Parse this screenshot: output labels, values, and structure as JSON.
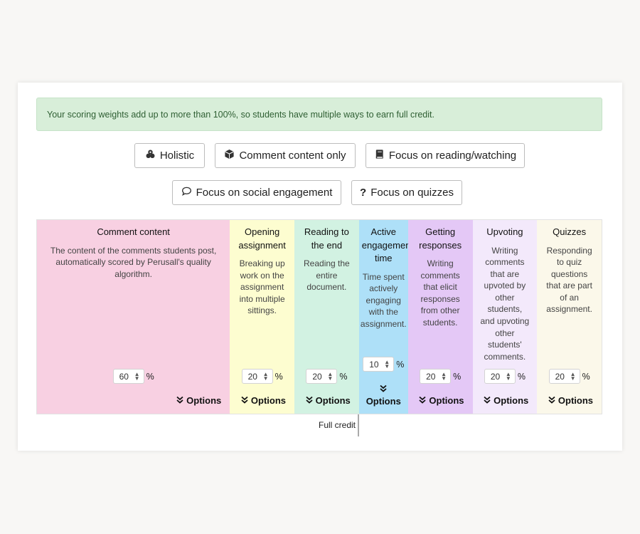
{
  "alert": {
    "text": "Your scoring weights add up to more than 100%, so students have multiple ways to earn full credit."
  },
  "presets": [
    {
      "label": "Holistic",
      "icon": "cubes-icon"
    },
    {
      "label": "Comment content only",
      "icon": "cube-icon"
    },
    {
      "label": "Focus on reading/watching",
      "icon": "book-icon"
    },
    {
      "label": "Focus on social engagement",
      "icon": "speech-bubble-icon"
    },
    {
      "label": "Focus on quizzes",
      "icon": "question-icon"
    }
  ],
  "components": [
    {
      "title": "Comment content",
      "description": "The content of the comments students post, automatically scored by Perusall's quality algorithm.",
      "weight": "60",
      "unit": "%",
      "options": "Options",
      "color": "#f8d0e2"
    },
    {
      "title": "Opening assignment",
      "description": "Breaking up work on the assignment into multiple sittings.",
      "weight": "20",
      "unit": "%",
      "options": "Options",
      "color": "#fdfdd0"
    },
    {
      "title": "Reading to the end",
      "description": "Reading the entire document.",
      "weight": "20",
      "unit": "%",
      "options": "Options",
      "color": "#d2f2e2"
    },
    {
      "title": "Active engagement time",
      "description": "Time spent actively engaging with the assignment.",
      "weight": "10",
      "unit": "%",
      "options": "Options",
      "color": "#aee0f8"
    },
    {
      "title": "Getting responses",
      "description": "Writing comments that elicit responses from other students.",
      "weight": "20",
      "unit": "%",
      "options": "Options",
      "color": "#e4c8f6"
    },
    {
      "title": "Upvoting",
      "description": "Writing comments that are upvoted by other students, and upvoting other students' comments.",
      "weight": "20",
      "unit": "%",
      "options": "Options",
      "color": "#f3e9fb"
    },
    {
      "title": "Quizzes",
      "description": "Responding to quiz questions that are part of an assignment.",
      "weight": "20",
      "unit": "%",
      "options": "Options",
      "color": "#fbf8ea"
    }
  ],
  "full_credit": {
    "label": "Full credit"
  }
}
